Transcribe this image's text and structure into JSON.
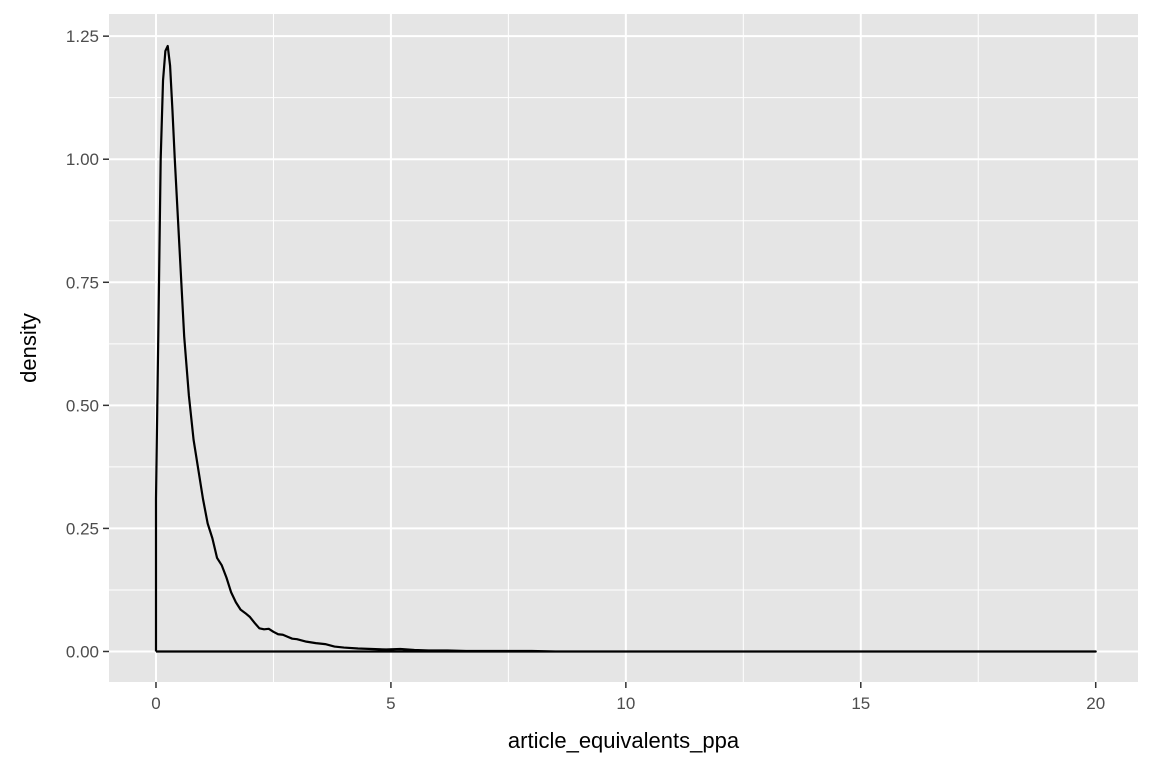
{
  "chart_data": {
    "type": "line",
    "subtype": "density",
    "title": "",
    "xlabel": "article_equivalents_ppa",
    "ylabel": "density",
    "xlim": [
      -1,
      20.9
    ],
    "ylim": [
      -0.062,
      1.295
    ],
    "x_ticks": [
      0,
      5,
      10,
      15,
      20
    ],
    "x_tick_labels": [
      "0",
      "5",
      "10",
      "15",
      "20"
    ],
    "y_ticks": [
      0,
      0.25,
      0.5,
      0.75,
      1.0,
      1.25
    ],
    "y_tick_labels": [
      "0.00",
      "0.25",
      "0.50",
      "0.75",
      "1.00",
      "1.25"
    ],
    "grid": true,
    "legend": "none",
    "colors": {
      "panel": "#e5e5e5",
      "grid": "#ffffff",
      "line": "#000000",
      "tick": "#333333",
      "text": "#4d4d4d"
    },
    "series": [
      {
        "x": [
          0,
          0,
          0.05,
          0.1,
          0.15,
          0.2,
          0.25,
          0.3,
          0.35,
          0.4,
          0.5,
          0.6,
          0.7,
          0.8,
          0.9,
          1.0,
          1.1,
          1.2,
          1.3,
          1.4,
          1.5,
          1.6,
          1.7,
          1.8,
          1.9,
          2.0,
          2.1,
          2.2,
          2.3,
          2.4,
          2.5,
          2.6,
          2.7,
          2.8,
          2.9,
          3.0,
          3.2,
          3.4,
          3.6,
          3.8,
          4.0,
          4.3,
          4.6,
          4.9,
          5.2,
          5.5,
          5.8,
          6.2,
          6.6,
          7.0,
          7.5,
          8.0,
          8.5,
          9.0,
          10.0,
          11.0,
          12.0,
          13.0,
          14.0,
          15.0,
          16.0,
          17.0,
          18.0,
          19.0,
          20.0,
          0
        ],
        "y": [
          0,
          0.31,
          0.65,
          1.0,
          1.16,
          1.22,
          1.23,
          1.19,
          1.1,
          1.0,
          0.82,
          0.64,
          0.52,
          0.43,
          0.37,
          0.31,
          0.26,
          0.23,
          0.19,
          0.175,
          0.15,
          0.12,
          0.1,
          0.085,
          0.078,
          0.07,
          0.058,
          0.047,
          0.045,
          0.046,
          0.04,
          0.035,
          0.034,
          0.03,
          0.026,
          0.025,
          0.02,
          0.017,
          0.015,
          0.01,
          0.008,
          0.006,
          0.005,
          0.004,
          0.005,
          0.003,
          0.002,
          0.002,
          0.001,
          0.001,
          0.001,
          0.001,
          0.0,
          0.0,
          0.0,
          0.0,
          0.0,
          0.0,
          0.0,
          0.0,
          0.0,
          0.0,
          0.0,
          0.0,
          0.0,
          0.0
        ]
      }
    ]
  }
}
